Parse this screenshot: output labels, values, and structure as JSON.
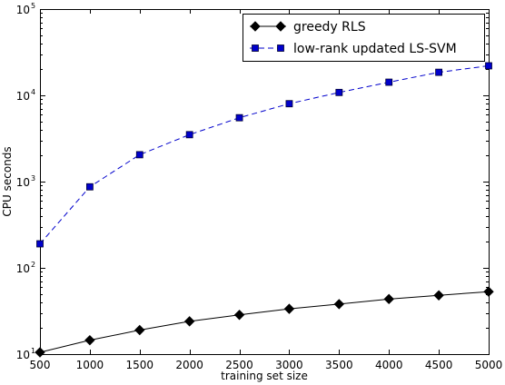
{
  "chart_data": {
    "type": "line",
    "title": "",
    "xlabel": "training set size",
    "ylabel": "CPU seconds",
    "x": [
      500,
      1000,
      1500,
      2000,
      2500,
      3000,
      3500,
      4000,
      4500,
      5000
    ],
    "xlim": [
      500,
      5000
    ],
    "ylim": [
      10,
      100000
    ],
    "yscale": "log",
    "grid": false,
    "legend_position": "top-right",
    "x_tick_labels": [
      "500",
      "1000",
      "1500",
      "2000",
      "2500",
      "3000",
      "3500",
      "4000",
      "4500",
      "5000"
    ],
    "y_ticks": [
      {
        "value": 10,
        "base": "10",
        "exp": "1"
      },
      {
        "value": 100,
        "base": "10",
        "exp": "2"
      },
      {
        "value": 1000,
        "base": "10",
        "exp": "3"
      },
      {
        "value": 10000,
        "base": "10",
        "exp": "4"
      },
      {
        "value": 100000,
        "base": "10",
        "exp": "5"
      }
    ],
    "series": [
      {
        "name": "greedy RLS",
        "color": "#000000",
        "line_style": "solid",
        "marker": "diamond",
        "values": [
          10.5,
          14.5,
          19,
          24,
          28.5,
          33.5,
          38,
          43.5,
          48,
          53
        ]
      },
      {
        "name": "low-rank updated LS-SVM",
        "color": "#0000cc",
        "line_style": "dashed",
        "marker": "square",
        "values": [
          190,
          870,
          2050,
          3500,
          5500,
          8000,
          10800,
          14200,
          18500,
          22000
        ]
      }
    ]
  }
}
